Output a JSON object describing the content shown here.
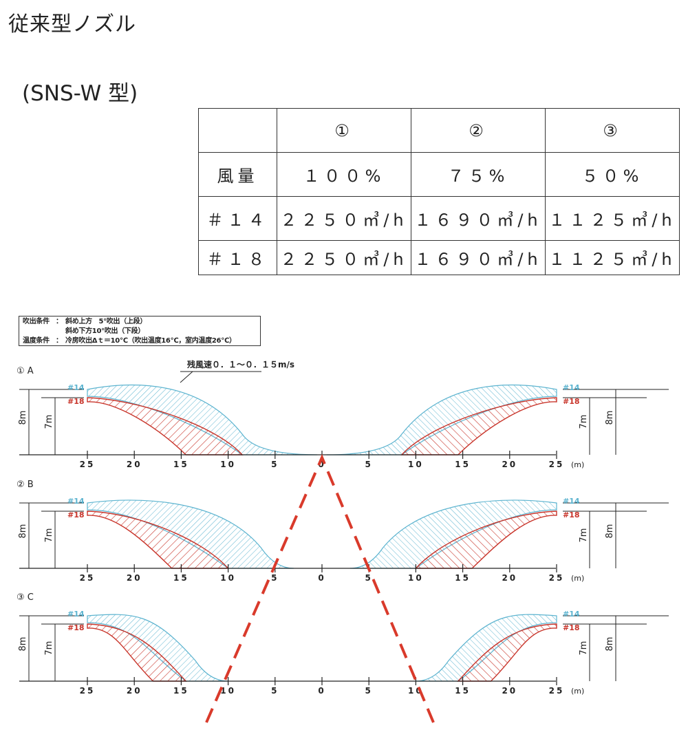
{
  "title": "従来型ノズル",
  "subtitle": "(SNS-W 型)",
  "table": {
    "headers": [
      "",
      "①",
      "②",
      "③"
    ],
    "rows": [
      [
        "風量",
        "１００%",
        "７５%",
        "５０%"
      ],
      [
        "＃１４",
        "２２５０㎥/h",
        "１６９０㎥/h",
        "１１２５㎥/h"
      ],
      [
        "＃１８",
        "２２５０㎥/h",
        "１６９０㎥/h",
        "１１２５㎥/h"
      ]
    ]
  },
  "conditions": {
    "blow_label": "吹出条件",
    "sep": "：",
    "blow_upper": "斜め上方　5°吹出（上段）",
    "blow_lower": "斜め下方10°吹出（下段）",
    "temp_label": "温度条件",
    "temp_value": "冷房吹出Δｔ＝10℃（吹出温度16℃，室内温度26℃）"
  },
  "residual_label": "残風速０．１～０．１５m/s",
  "panels": [
    {
      "label": "① A"
    },
    {
      "label": "② B"
    },
    {
      "label": "③ C"
    }
  ],
  "nozzle_labels": {
    "n14": "#14",
    "n18": "#18"
  },
  "height_labels": {
    "h8": "8m",
    "h7": "7m"
  },
  "axis_ticks": [
    "25",
    "20",
    "15",
    "10",
    "5",
    "0",
    "5",
    "10",
    "15",
    "20",
    "25"
  ],
  "axis_unit": "(m)",
  "colors": {
    "blue": "#5bb3cf",
    "red": "#c8342a",
    "dashed": "#d93a2b"
  }
}
